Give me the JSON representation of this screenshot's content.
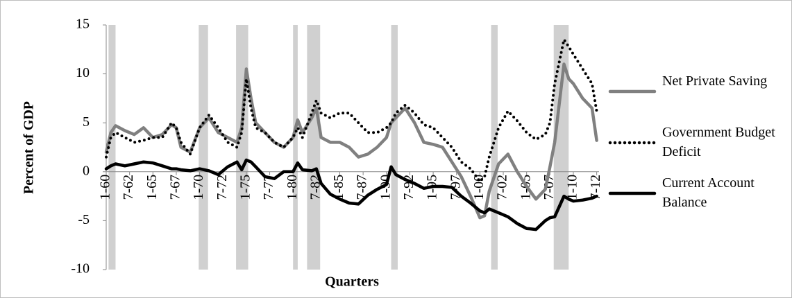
{
  "chart_data": {
    "type": "line",
    "y_label": "Percent of GDP",
    "x_label": "Quarters",
    "ylim": [
      -10,
      15
    ],
    "yticks": [
      -10,
      -5,
      0,
      5,
      10,
      15
    ],
    "xlim": [
      1960,
      2012.75
    ],
    "xticks": [
      {
        "value": 1960,
        "label": "1-60"
      },
      {
        "value": 1962.5,
        "label": "7-62"
      },
      {
        "value": 1965,
        "label": "1-65"
      },
      {
        "value": 1967.5,
        "label": "7-67"
      },
      {
        "value": 1970,
        "label": "1-70"
      },
      {
        "value": 1972.5,
        "label": "7-72"
      },
      {
        "value": 1975,
        "label": "1-75"
      },
      {
        "value": 1977.5,
        "label": "7-77"
      },
      {
        "value": 1980,
        "label": "1-80"
      },
      {
        "value": 1982.5,
        "label": "7-82"
      },
      {
        "value": 1985,
        "label": "1-85"
      },
      {
        "value": 1987.5,
        "label": "7-87"
      },
      {
        "value": 1990,
        "label": "1-90"
      },
      {
        "value": 1992.5,
        "label": "7-92"
      },
      {
        "value": 1995,
        "label": "1-95"
      },
      {
        "value": 1997.5,
        "label": "7-97"
      },
      {
        "value": 2000,
        "label": "1-00"
      },
      {
        "value": 2002.5,
        "label": "7-02"
      },
      {
        "value": 2005,
        "label": "1-05"
      },
      {
        "value": 2007.5,
        "label": "7-07"
      },
      {
        "value": 2010,
        "label": "1-10"
      },
      {
        "value": 2012.5,
        "label": "7-12"
      }
    ],
    "shaded_periods": [
      [
        1960.25,
        1961.0
      ],
      [
        1969.9,
        1970.9
      ],
      [
        1973.9,
        1975.2
      ],
      [
        1980.0,
        1980.5
      ],
      [
        1981.5,
        1982.9
      ],
      [
        1990.5,
        1991.2
      ],
      [
        2001.2,
        2001.9
      ],
      [
        2007.9,
        2009.5
      ]
    ],
    "shade_color": "#d0d0d0",
    "x": [
      1960,
      1960.5,
      1961,
      1962,
      1963,
      1964,
      1965,
      1966,
      1967,
      1967.5,
      1968,
      1969,
      1970,
      1971,
      1972,
      1973,
      1974,
      1974.5,
      1975,
      1975.5,
      1976,
      1977,
      1978,
      1979,
      1980,
      1980.5,
      1981,
      1982,
      1982.5,
      1983,
      1984,
      1985,
      1986,
      1987,
      1988,
      1989,
      1990,
      1990.5,
      1991,
      1992,
      1993,
      1994,
      1995,
      1996,
      1997,
      1998,
      1999,
      2000,
      2000.5,
      2001,
      2002,
      2003,
      2004,
      2005,
      2006,
      2007,
      2007.5,
      2008,
      2009,
      2009.5,
      2010,
      2011,
      2012,
      2012.5
    ],
    "series": [
      {
        "name": "Net Private Saving",
        "color": "#808080",
        "line_style": "solid",
        "values": [
          2,
          4,
          4.7,
          4.2,
          3.8,
          4.5,
          3.5,
          3.8,
          4.8,
          4.5,
          2.5,
          2.0,
          4.5,
          5.5,
          4.0,
          3.5,
          3.0,
          4.5,
          10.5,
          7.5,
          5,
          4,
          3,
          2.5,
          3.5,
          5.3,
          4,
          5.5,
          6.5,
          3.5,
          3.0,
          3.0,
          2.5,
          1.5,
          1.8,
          2.5,
          3.5,
          5.0,
          5.5,
          6.5,
          5.0,
          3.0,
          2.8,
          2.5,
          1.0,
          -0.5,
          -2.5,
          -4.7,
          -4.5,
          -2,
          0.8,
          1.8,
          0.0,
          -1.5,
          -2.8,
          -1.8,
          0.5,
          3,
          11,
          9.5,
          9,
          7.5,
          6.5,
          3.2
        ]
      },
      {
        "name": "Government Budget Deficit",
        "color": "#000000",
        "line_style": "dotted",
        "values": [
          1.5,
          3.5,
          4,
          3.5,
          3,
          3.2,
          3.5,
          3.5,
          5,
          4.5,
          3,
          1.8,
          4.5,
          5.8,
          4.5,
          3,
          2.5,
          4,
          9.5,
          6.5,
          4.5,
          4,
          3,
          2.5,
          3.5,
          4.5,
          3.5,
          6,
          7.3,
          6,
          5.5,
          6,
          6,
          5,
          4,
          4,
          4.5,
          5,
          6,
          6.8,
          6,
          4.8,
          4.5,
          3.5,
          2.5,
          1,
          0.3,
          -1,
          -0.5,
          1.5,
          4.5,
          6.2,
          5.2,
          4,
          3.3,
          3.8,
          5,
          9,
          13.5,
          12.8,
          12,
          10.5,
          9,
          6.2
        ]
      },
      {
        "name": "Current Account Balance",
        "color": "#000000",
        "line_style": "solid",
        "values": [
          0.3,
          0.6,
          0.8,
          0.6,
          0.8,
          1.0,
          0.9,
          0.6,
          0.3,
          0.3,
          0.2,
          0.1,
          0.3,
          0.1,
          -0.3,
          0.5,
          1.0,
          0.2,
          1.2,
          1.0,
          0.5,
          -0.5,
          -0.7,
          0,
          0.0,
          0.9,
          0.2,
          0.1,
          0.3,
          -1.2,
          -2.3,
          -2.8,
          -3.2,
          -3.3,
          -2.4,
          -1.8,
          -1.3,
          0.5,
          -0.3,
          -0.8,
          -1.2,
          -1.7,
          -1.5,
          -1.5,
          -1.6,
          -2.5,
          -3.2,
          -4.0,
          -4.2,
          -3.8,
          -4.2,
          -4.6,
          -5.3,
          -5.8,
          -5.9,
          -5.0,
          -4.7,
          -4.6,
          -2.5,
          -2.8,
          -3.0,
          -2.9,
          -2.7,
          -2.5
        ]
      }
    ]
  }
}
